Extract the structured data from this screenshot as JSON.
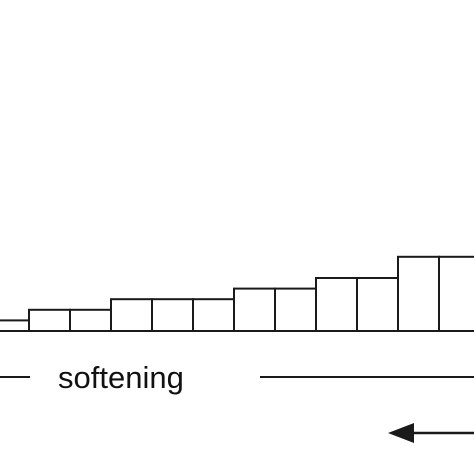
{
  "diagram": {
    "label": "softening",
    "step_levels": [
      1,
      2,
      2,
      3,
      3,
      3,
      4,
      4,
      5,
      5,
      7,
      7
    ],
    "colors": {
      "stroke": "#1a1a1a",
      "fill": "#ffffff",
      "text": "#111111"
    },
    "arrow_direction": "left"
  }
}
